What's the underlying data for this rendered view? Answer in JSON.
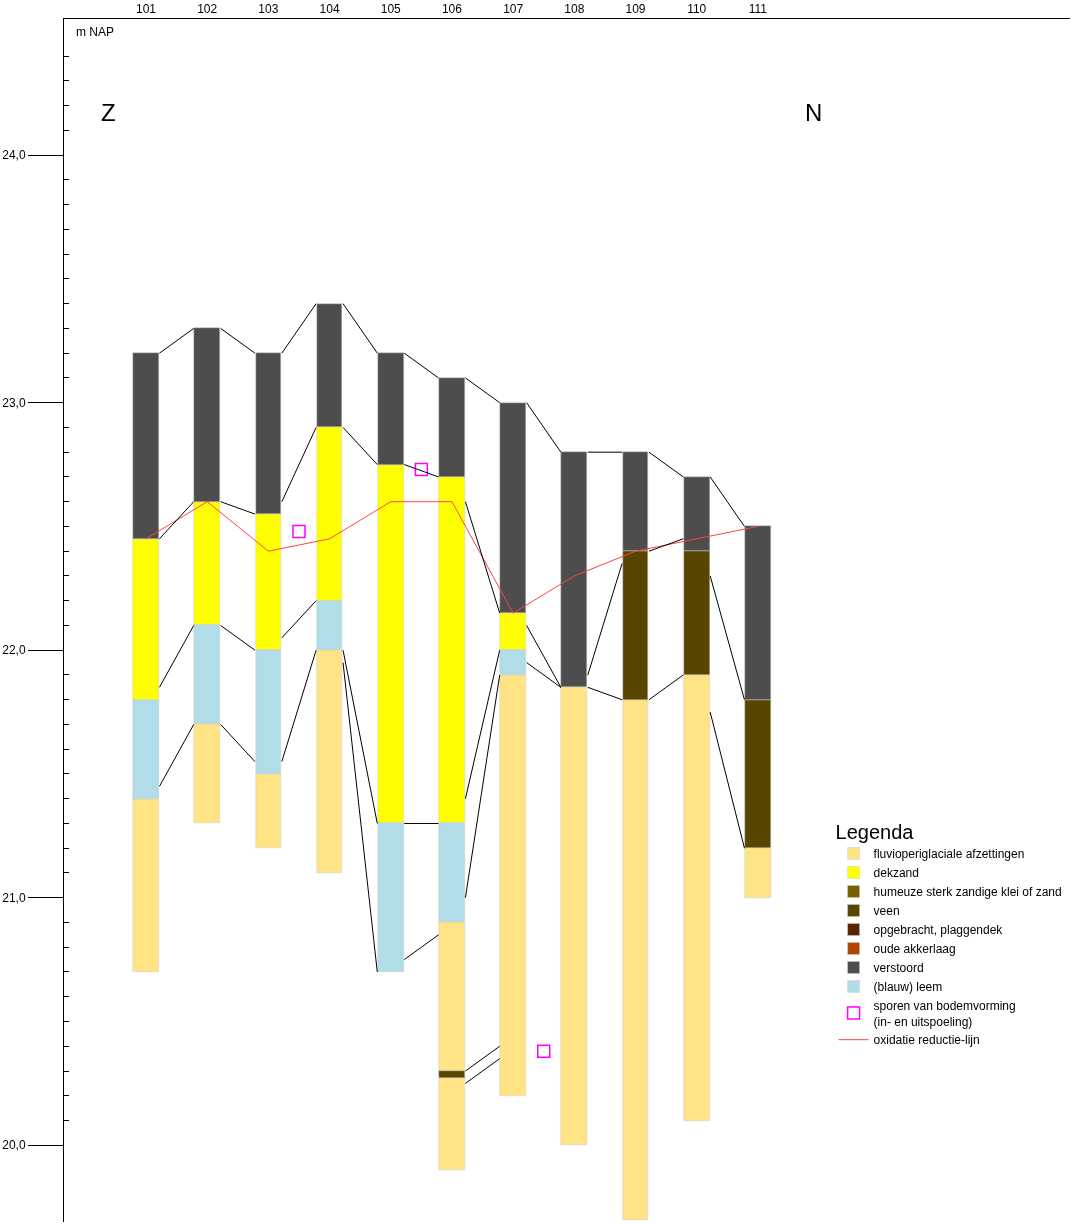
{
  "chart_data": {
    "type": "bar",
    "ylabel": "m NAP",
    "legend_title": "Legenda",
    "legend": "right",
    "annotations": [
      "Z",
      "N"
    ],
    "x": [
      101,
      102,
      103,
      104,
      105,
      106,
      107,
      108,
      109,
      110,
      111
    ],
    "xlim": [
      99.66,
      116.1
    ],
    "xticks": [
      101,
      102,
      103,
      104,
      105,
      106,
      107,
      108,
      109,
      110,
      111
    ],
    "ylim": [
      19.69,
      24.55
    ],
    "yticks": [
      {
        "value": 20,
        "label": "20,0"
      },
      {
        "value": 20.1,
        "label": null
      },
      {
        "value": 20.2,
        "label": null
      },
      {
        "value": 20.3,
        "label": null
      },
      {
        "value": 20.4,
        "label": null
      },
      {
        "value": 20.5,
        "label": null
      },
      {
        "value": 20.6,
        "label": null
      },
      {
        "value": 20.7,
        "label": null
      },
      {
        "value": 20.8,
        "label": null
      },
      {
        "value": 20.9,
        "label": null
      },
      {
        "value": 21,
        "label": "21,0"
      },
      {
        "value": 21.1,
        "label": null
      },
      {
        "value": 21.2,
        "label": null
      },
      {
        "value": 21.3,
        "label": null
      },
      {
        "value": 21.4,
        "label": null
      },
      {
        "value": 21.5,
        "label": null
      },
      {
        "value": 21.6,
        "label": null
      },
      {
        "value": 21.7,
        "label": null
      },
      {
        "value": 21.8,
        "label": null
      },
      {
        "value": 21.9,
        "label": null
      },
      {
        "value": 22,
        "label": "22,0"
      },
      {
        "value": 22.1,
        "label": null
      },
      {
        "value": 22.2,
        "label": null
      },
      {
        "value": 22.3,
        "label": null
      },
      {
        "value": 22.4,
        "label": null
      },
      {
        "value": 22.5,
        "label": null
      },
      {
        "value": 22.6,
        "label": null
      },
      {
        "value": 22.7,
        "label": null
      },
      {
        "value": 22.8,
        "label": null
      },
      {
        "value": 22.9,
        "label": null
      },
      {
        "value": 23,
        "label": "23,0"
      },
      {
        "value": 23.1,
        "label": null
      },
      {
        "value": 23.2,
        "label": null
      },
      {
        "value": 23.3,
        "label": null
      },
      {
        "value": 23.4,
        "label": null
      },
      {
        "value": 23.5,
        "label": null
      },
      {
        "value": 23.6,
        "label": null
      },
      {
        "value": 23.7,
        "label": null
      },
      {
        "value": 23.8,
        "label": null
      },
      {
        "value": 23.9,
        "label": null
      },
      {
        "value": 24,
        "label": "24,0"
      },
      {
        "value": 24.1,
        "label": null
      },
      {
        "value": 24.2,
        "label": null
      },
      {
        "value": 24.3,
        "label": null
      },
      {
        "value": 24.4,
        "label": null
      }
    ],
    "series": [
      {
        "name": "fluvioperiglaciale afzettingen",
        "color": "#ffe384",
        "values": [
          0.7,
          0.4,
          0.3,
          0.9,
          null,
          0.6,
          1.7,
          1.85,
          2.1,
          1.8,
          0.2
        ],
        "base": [
          20.7,
          21.3,
          21.2,
          21.1,
          null,
          20.3,
          20.2,
          20.0,
          19.7,
          20.1,
          21.0
        ]
      },
      {
        "color": "#ffe384",
        "values": [
          null,
          null,
          null,
          null,
          null,
          0.37,
          null,
          null,
          null,
          null,
          null
        ],
        "base": [
          null,
          null,
          null,
          null,
          null,
          19.9,
          null,
          null,
          null,
          null,
          null
        ]
      },
      {
        "name": "dekzand",
        "color": "#ffff00",
        "values": [
          0.65,
          0.5,
          0.55,
          0.7,
          1.45,
          1.4,
          0.15,
          null,
          null,
          null,
          null
        ],
        "base": [
          21.8,
          22.1,
          22.0,
          22.2,
          21.3,
          21.3,
          22.0,
          null,
          null,
          null,
          null
        ]
      },
      {
        "name": "humeuze sterk zandige klei of zand",
        "color": "#7a5f00",
        "values": [
          null,
          null,
          null,
          null,
          null,
          null,
          null,
          null,
          null,
          null,
          null
        ],
        "base": [
          null,
          null,
          null,
          null,
          null,
          null,
          null,
          null,
          null,
          null,
          null
        ]
      },
      {
        "name": "veen",
        "color": "#574500",
        "values": [
          null,
          null,
          null,
          null,
          null,
          0.03,
          null,
          null,
          0.6,
          0.5,
          0.6
        ],
        "base": [
          null,
          null,
          null,
          null,
          null,
          20.27,
          null,
          null,
          21.8,
          21.9,
          21.2
        ]
      },
      {
        "name": "opgebracht, plaggendek",
        "color": "#5a2300",
        "values": [
          null,
          null,
          null,
          null,
          null,
          null,
          null,
          null,
          null,
          null,
          null
        ],
        "base": [
          null,
          null,
          null,
          null,
          null,
          null,
          null,
          null,
          null,
          null,
          null
        ]
      },
      {
        "name": "oude akkerlaag",
        "color": "#b24400",
        "values": [
          null,
          null,
          null,
          null,
          null,
          null,
          null,
          null,
          null,
          null,
          null
        ],
        "base": [
          null,
          null,
          null,
          null,
          null,
          null,
          null,
          null,
          null,
          null,
          null
        ]
      },
      {
        "name": "verstoord",
        "color": "#4d4d4d",
        "values": [
          0.75,
          0.7,
          0.65,
          0.5,
          0.45,
          0.4,
          0.85,
          0.95,
          0.4,
          0.3,
          0.7
        ],
        "base": [
          22.45,
          22.6,
          22.55,
          22.9,
          22.75,
          22.7,
          22.15,
          21.85,
          22.4,
          22.4,
          21.8
        ]
      },
      {
        "name": "(blauw) leem",
        "color": "#b0dde8",
        "values": [
          0.4,
          0.4,
          0.5,
          0.2,
          0.6,
          0.4,
          0.1,
          null,
          null,
          null,
          null
        ],
        "base": [
          21.4,
          21.7,
          21.5,
          22.0,
          20.7,
          20.9,
          21.9,
          null,
          null,
          null,
          null
        ]
      },
      {
        "name": "sporen van bodemvorming\n(in- en uitspoeling)",
        "type": "scatter",
        "marker": "square",
        "color": "#ff00ff",
        "x": [
          103.5,
          105.5,
          107.5
        ],
        "values": [
          22.48,
          22.73,
          20.38
        ]
      },
      {
        "name": "oxidatie reductie-lijn",
        "type": "line",
        "color": "#ff4444",
        "marker": "none",
        "values": [
          22.45,
          22.6,
          22.4,
          22.45,
          22.6,
          22.6,
          22.15,
          22.3,
          22.4,
          22.45,
          22.5
        ]
      },
      {
        "type": "line",
        "color": "#000000",
        "marker": "none",
        "x": [
          101.22,
          101.78
        ],
        "values": [
          23.2,
          23.3
        ]
      },
      {
        "type": "line",
        "color": "#000000",
        "marker": "none",
        "x": [
          101.22,
          101.78
        ],
        "values": [
          22.45,
          22.6
        ]
      },
      {
        "type": "line",
        "color": "#000000",
        "marker": "none",
        "x": [
          101.22,
          101.78
        ],
        "values": [
          21.85,
          22.1
        ]
      },
      {
        "type": "line",
        "color": "#000000",
        "marker": "none",
        "x": [
          101.22,
          101.78
        ],
        "values": [
          21.45,
          21.7
        ]
      },
      {
        "type": "line",
        "color": "#000000",
        "marker": "none",
        "x": [
          102.22,
          102.78
        ],
        "values": [
          23.3,
          23.2
        ]
      },
      {
        "type": "line",
        "color": "#000000",
        "marker": "none",
        "x": [
          102.22,
          102.78
        ],
        "values": [
          22.6,
          22.55
        ]
      },
      {
        "type": "line",
        "color": "#000000",
        "marker": "none",
        "x": [
          102.22,
          102.78
        ],
        "values": [
          22.1,
          22.0
        ]
      },
      {
        "type": "line",
        "color": "#000000",
        "marker": "none",
        "x": [
          102.22,
          102.78
        ],
        "values": [
          21.7,
          21.55
        ]
      },
      {
        "type": "line",
        "color": "#000000",
        "marker": "none",
        "x": [
          103.22,
          103.78
        ],
        "values": [
          23.2,
          23.4
        ]
      },
      {
        "type": "line",
        "color": "#000000",
        "marker": "none",
        "x": [
          103.22,
          103.78
        ],
        "values": [
          22.6,
          22.9
        ]
      },
      {
        "type": "line",
        "color": "#000000",
        "marker": "none",
        "x": [
          103.22,
          103.78
        ],
        "values": [
          22.05,
          22.2
        ]
      },
      {
        "type": "line",
        "color": "#000000",
        "marker": "none",
        "x": [
          103.22,
          103.78
        ],
        "values": [
          21.55,
          22.0
        ]
      },
      {
        "type": "line",
        "color": "#000000",
        "marker": "none",
        "x": [
          104.22,
          104.78
        ],
        "values": [
          23.4,
          23.2
        ]
      },
      {
        "type": "line",
        "color": "#000000",
        "marker": "none",
        "x": [
          104.22,
          104.78
        ],
        "values": [
          22.9,
          22.75
        ]
      },
      {
        "type": "line",
        "color": "#000000",
        "marker": "none",
        "x": [
          104.22,
          104.78
        ],
        "values": [
          22.0,
          21.3
        ]
      },
      {
        "type": "line",
        "color": "#000000",
        "marker": "none",
        "x": [
          104.22,
          104.78
        ],
        "values": [
          21.95,
          20.7
        ]
      },
      {
        "type": "line",
        "color": "#000000",
        "marker": "none",
        "x": [
          105.22,
          105.78
        ],
        "values": [
          23.2,
          23.1
        ]
      },
      {
        "type": "line",
        "color": "#000000",
        "marker": "none",
        "x": [
          105.22,
          105.78
        ],
        "values": [
          22.75,
          22.7
        ]
      },
      {
        "type": "line",
        "color": "#000000",
        "marker": "none",
        "x": [
          105.22,
          105.78
        ],
        "values": [
          21.3,
          21.3
        ]
      },
      {
        "type": "line",
        "color": "#000000",
        "marker": "none",
        "x": [
          105.22,
          105.78
        ],
        "values": [
          20.75,
          20.85
        ]
      },
      {
        "type": "line",
        "color": "#000000",
        "marker": "none",
        "x": [
          106.22,
          106.78
        ],
        "values": [
          23.1,
          23.0
        ]
      },
      {
        "type": "line",
        "color": "#000000",
        "marker": "none",
        "x": [
          106.22,
          106.78
        ],
        "values": [
          22.6,
          22.15
        ]
      },
      {
        "type": "line",
        "color": "#000000",
        "marker": "none",
        "x": [
          106.22,
          106.78
        ],
        "values": [
          21.4,
          22.0
        ]
      },
      {
        "type": "line",
        "color": "#000000",
        "marker": "none",
        "x": [
          106.22,
          106.78
        ],
        "values": [
          21.0,
          21.9
        ]
      },
      {
        "type": "line",
        "color": "#000000",
        "marker": "none",
        "x": [
          106.22,
          106.78
        ],
        "values": [
          20.3,
          20.4
        ]
      },
      {
        "type": "line",
        "color": "#000000",
        "marker": "none",
        "x": [
          106.22,
          106.78
        ],
        "values": [
          20.25,
          20.35
        ]
      },
      {
        "type": "line",
        "color": "#000000",
        "marker": "none",
        "x": [
          107.22,
          107.78
        ],
        "values": [
          23.0,
          22.8
        ]
      },
      {
        "type": "line",
        "color": "#000000",
        "marker": "none",
        "x": [
          107.22,
          107.78
        ],
        "values": [
          22.1,
          21.85
        ]
      },
      {
        "type": "line",
        "color": "#000000",
        "marker": "none",
        "x": [
          107.22,
          107.78
        ],
        "values": [
          21.95,
          21.85
        ]
      },
      {
        "type": "line",
        "color": "#000000",
        "marker": "none",
        "x": [
          108.22,
          108.78
        ],
        "values": [
          22.8,
          22.8
        ]
      },
      {
        "type": "line",
        "color": "#000000",
        "marker": "none",
        "x": [
          108.22,
          108.78
        ],
        "values": [
          21.9,
          22.35
        ]
      },
      {
        "type": "line",
        "color": "#000000",
        "marker": "none",
        "x": [
          108.22,
          108.78
        ],
        "values": [
          21.85,
          21.8
        ]
      },
      {
        "type": "line",
        "color": "#000000",
        "marker": "none",
        "x": [
          109.22,
          109.78
        ],
        "values": [
          22.8,
          22.7
        ]
      },
      {
        "type": "line",
        "color": "#000000",
        "marker": "none",
        "x": [
          109.22,
          109.78
        ],
        "values": [
          22.4,
          22.45
        ]
      },
      {
        "type": "line",
        "color": "#000000",
        "marker": "none",
        "x": [
          109.22,
          109.78
        ],
        "values": [
          21.8,
          21.9
        ]
      },
      {
        "type": "line",
        "color": "#000000",
        "marker": "none",
        "x": [
          110.22,
          110.78
        ],
        "values": [
          22.7,
          22.5
        ]
      },
      {
        "type": "line",
        "color": "#000000",
        "marker": "none",
        "x": [
          110.22,
          110.78
        ],
        "values": [
          22.3,
          21.8
        ]
      },
      {
        "type": "line",
        "color": "#000000",
        "marker": "none",
        "x": [
          110.22,
          110.78
        ],
        "values": [
          21.75,
          21.2
        ]
      }
    ]
  }
}
